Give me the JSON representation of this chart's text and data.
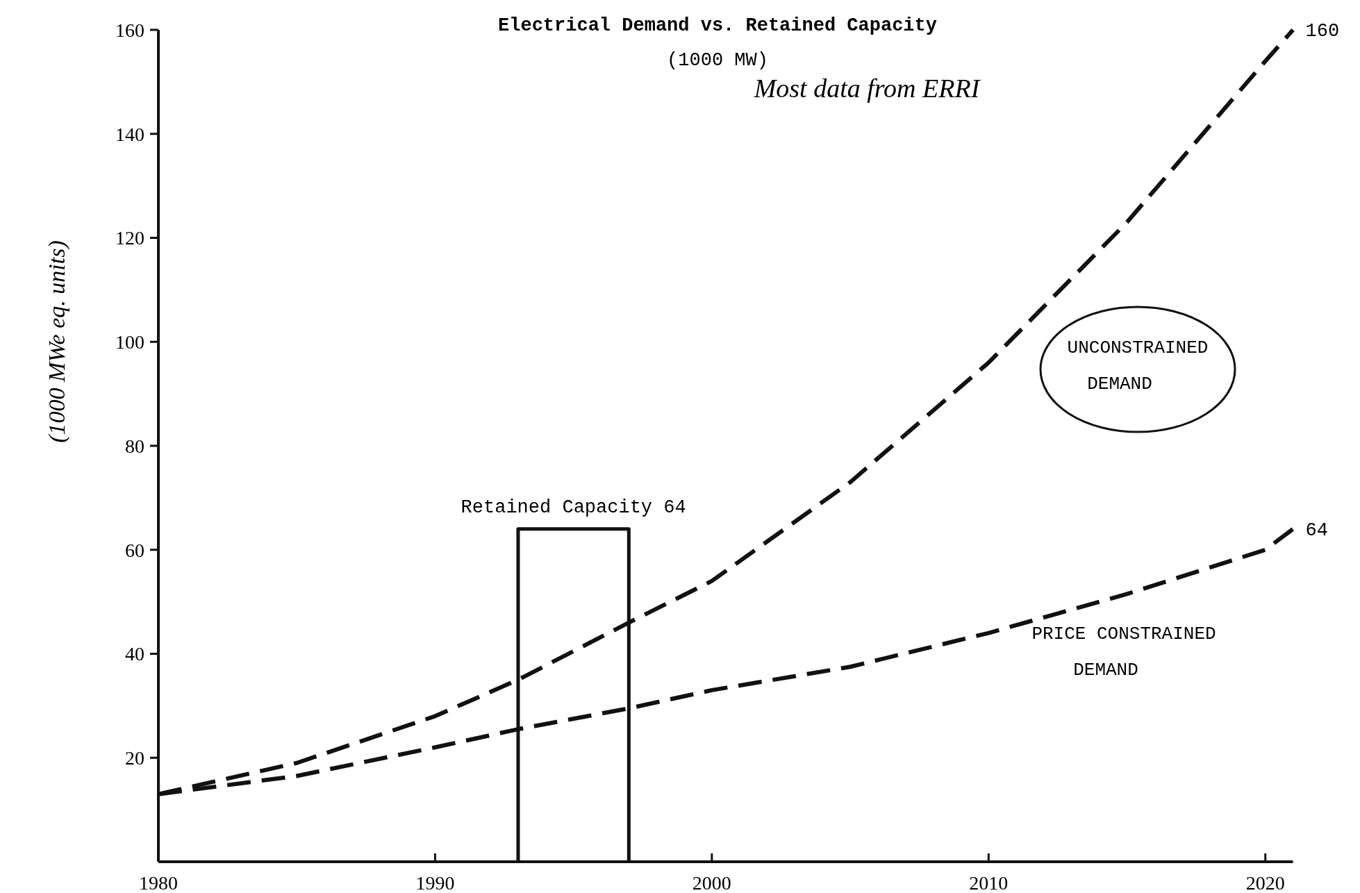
{
  "chart_data": {
    "type": "line",
    "title": "Electrical Demand vs. Retained Capacity",
    "subtitle": "(1000 MW)",
    "ylabel": "(1000 MWe eq. units)",
    "annotations": [
      "Most data from ERRI"
    ],
    "xlim": [
      1980,
      2021
    ],
    "xticks": [
      1980,
      1990,
      2000,
      2010,
      2020
    ],
    "ylim": [
      0,
      160
    ],
    "yticks": [
      20,
      40,
      60,
      80,
      100,
      120,
      140,
      160
    ],
    "grid": false,
    "legend": false,
    "series": [
      {
        "name": "UNCONSTRAINED DEMAND",
        "color": "#111111",
        "line_style": "dashed",
        "x": [
          1980,
          1985,
          1990,
          1993,
          1997,
          2000,
          2005,
          2010,
          2015,
          2020,
          2021
        ],
        "values": [
          13,
          19,
          28,
          35,
          46,
          54,
          73,
          96,
          123,
          154,
          160
        ],
        "value_labels": [
          null,
          null,
          null,
          null,
          null,
          null,
          null,
          null,
          null,
          null,
          "160"
        ]
      },
      {
        "name": "PRICE CONSTRAINED DEMAND",
        "color": "#111111",
        "line_style": "dashed",
        "x": [
          1980,
          1985,
          1990,
          1993,
          1997,
          2000,
          2005,
          2010,
          2015,
          2020,
          2021
        ],
        "values": [
          13,
          16.5,
          22,
          25.5,
          29.5,
          33,
          37.5,
          44,
          51.5,
          60,
          64
        ],
        "value_labels": [
          null,
          null,
          null,
          null,
          null,
          null,
          null,
          null,
          null,
          null,
          "64"
        ]
      },
      {
        "name": "Retained Capacity 64",
        "color": "#111111",
        "line_style": "solid",
        "x": [
          1993,
          1993,
          1997,
          1997
        ],
        "values": [
          0,
          64,
          64,
          0
        ]
      }
    ]
  }
}
